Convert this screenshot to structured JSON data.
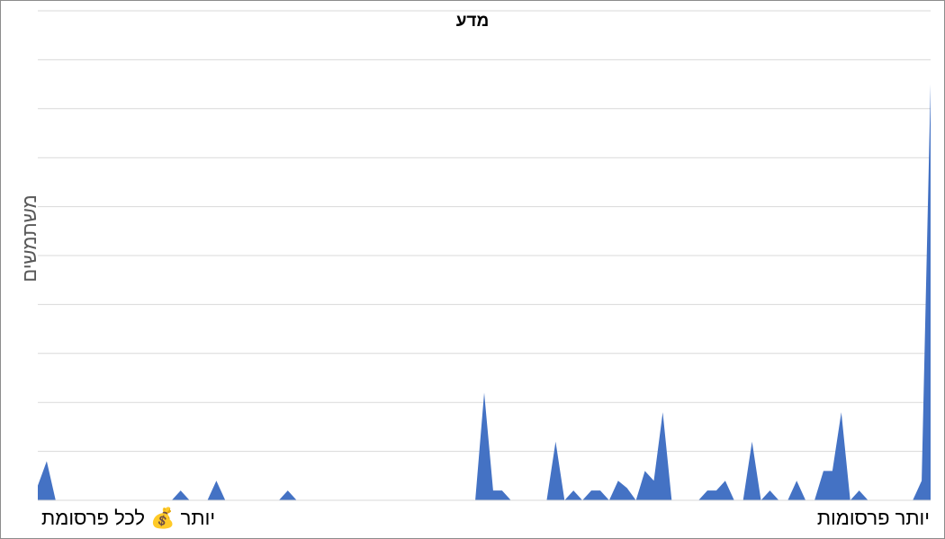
{
  "chart_data": {
    "type": "area",
    "title": "מדע",
    "ylabel": "משתמשים",
    "xlabel": "",
    "x_left_label": "יותר 💰 לכל פרסומת",
    "x_right_label": "יותר פרסומות",
    "ylim": [
      0,
      10
    ],
    "grid": true,
    "legend": "none",
    "series": [
      {
        "color": "#4472c4",
        "values": [
          0.3,
          0.8,
          0,
          0,
          0,
          0,
          0,
          0,
          0,
          0,
          0,
          0,
          0,
          0,
          0,
          0,
          0.2,
          0,
          0,
          0,
          0.4,
          0,
          0,
          0,
          0,
          0,
          0,
          0,
          0.2,
          0,
          0,
          0,
          0,
          0,
          0,
          0,
          0,
          0,
          0,
          0,
          0,
          0,
          0,
          0,
          0,
          0,
          0,
          0,
          0,
          0,
          2.2,
          0.2,
          0.2,
          0,
          0,
          0,
          0,
          0,
          1.2,
          0,
          0.2,
          0,
          0.2,
          0.2,
          0,
          0.4,
          0.25,
          0,
          0.6,
          0.4,
          1.8,
          0,
          0,
          0,
          0,
          0.2,
          0.2,
          0.4,
          0,
          0,
          1.2,
          0,
          0.2,
          0,
          0,
          0.4,
          0,
          0,
          0.6,
          0.6,
          1.8,
          0,
          0.2,
          0,
          0,
          0,
          0,
          0,
          0,
          0.4,
          8.5
        ]
      }
    ]
  }
}
